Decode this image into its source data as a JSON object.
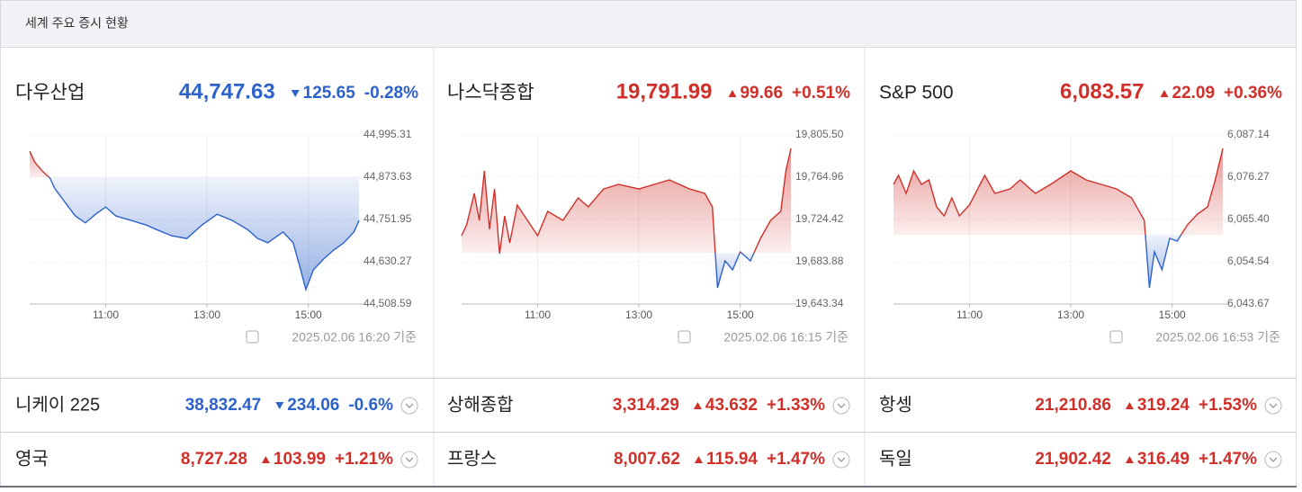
{
  "header": {
    "title": "세계 주요 증시 현황"
  },
  "colors": {
    "up": "#d0302a",
    "down": "#2d62cc"
  },
  "indices": [
    {
      "name": "다우산업",
      "price": "44,747.63",
      "change": "125.65",
      "change_pct": "-0.28%",
      "direction": "down",
      "timestamp": "2025.02.06 16:20 기준"
    },
    {
      "name": "나스닥종합",
      "price": "19,791.99",
      "change": "99.66",
      "change_pct": "+0.51%",
      "direction": "up",
      "timestamp": "2025.02.06 16:15 기준"
    },
    {
      "name": "S&P 500",
      "price": "6,083.57",
      "change": "22.09",
      "change_pct": "+0.36%",
      "direction": "up",
      "timestamp": "2025.02.06 16:53 기준"
    }
  ],
  "chart_data": [
    {
      "type": "line",
      "baseline": 44873.28,
      "grid": true,
      "x": [
        9.5,
        9.6,
        9.75,
        9.9,
        10.0,
        10.2,
        10.4,
        10.6,
        10.8,
        11.0,
        11.2,
        11.5,
        11.8,
        12.0,
        12.3,
        12.6,
        12.9,
        13.2,
        13.5,
        13.8,
        14.0,
        14.2,
        14.5,
        14.7,
        14.85,
        14.95,
        15.1,
        15.3,
        15.5,
        15.7,
        15.9,
        16.0
      ],
      "values": [
        44948.7,
        44917,
        44891,
        44871,
        44840,
        44801,
        44762,
        44742,
        44767,
        44788,
        44762,
        44749,
        44736,
        44723,
        44705,
        44697,
        44736,
        44767,
        44749,
        44723,
        44697,
        44685,
        44716,
        44685,
        44607,
        44550,
        44607,
        44638,
        44664,
        44685,
        44716,
        44749
      ],
      "xlim": [
        9.5,
        16
      ],
      "ylim": [
        44508.59,
        44995.31
      ],
      "xticks": [
        {
          "value": 11,
          "label": "11:00"
        },
        {
          "value": 13,
          "label": "13:00"
        },
        {
          "value": 15,
          "label": "15:00"
        }
      ],
      "yticks": [
        {
          "value": 44508.59,
          "label": "44,508.59"
        },
        {
          "value": 44630.27,
          "label": "44,630.27"
        },
        {
          "value": 44751.95,
          "label": "44,751.95"
        },
        {
          "value": 44873.63,
          "label": "44,873.63"
        },
        {
          "value": 44995.31,
          "label": "44,995.31"
        }
      ]
    },
    {
      "type": "line",
      "baseline": 19692.33,
      "grid": true,
      "x": [
        9.5,
        9.6,
        9.75,
        9.85,
        9.95,
        10.05,
        10.15,
        10.25,
        10.35,
        10.45,
        10.6,
        10.8,
        11.0,
        11.2,
        11.5,
        11.8,
        12.0,
        12.3,
        12.6,
        13.0,
        13.3,
        13.6,
        14.0,
        14.3,
        14.45,
        14.55,
        14.7,
        14.85,
        15.0,
        15.2,
        15.4,
        15.6,
        15.8,
        15.9,
        16.0
      ],
      "values": [
        19708.9,
        19719.2,
        19749.4,
        19723.6,
        19771.0,
        19714.9,
        19753.7,
        19691.6,
        19727.9,
        19702.0,
        19738.2,
        19723.6,
        19708.9,
        19732.2,
        19723.6,
        19745.1,
        19736.5,
        19753.7,
        19758.1,
        19753.7,
        19758.1,
        19762.4,
        19753.7,
        19749.4,
        19736.5,
        19658.9,
        19684.7,
        19676.1,
        19693.4,
        19684.7,
        19706.3,
        19723.6,
        19732.2,
        19771.0,
        19792.6
      ],
      "xlim": [
        9.5,
        16
      ],
      "ylim": [
        19643.34,
        19805.5
      ],
      "xticks": [
        {
          "value": 11,
          "label": "11:00"
        },
        {
          "value": 13,
          "label": "13:00"
        },
        {
          "value": 15,
          "label": "15:00"
        }
      ],
      "yticks": [
        {
          "value": 19643.34,
          "label": "19,643.34"
        },
        {
          "value": 19683.88,
          "label": "19,683.88"
        },
        {
          "value": 19724.42,
          "label": "19,724.42"
        },
        {
          "value": 19764.96,
          "label": "19,764.96"
        },
        {
          "value": 19805.5,
          "label": "19,805.50"
        }
      ]
    },
    {
      "type": "line",
      "baseline": 6061.48,
      "grid": true,
      "x": [
        9.5,
        9.6,
        9.75,
        9.9,
        10.05,
        10.2,
        10.35,
        10.5,
        10.65,
        10.8,
        11.0,
        11.3,
        11.5,
        11.8,
        12.0,
        12.3,
        12.6,
        13.0,
        13.3,
        13.6,
        13.9,
        14.2,
        14.45,
        14.55,
        14.65,
        14.8,
        14.95,
        15.1,
        15.3,
        15.5,
        15.7,
        15.85,
        16.0
      ],
      "values": [
        6074.42,
        6076.73,
        6072.11,
        6077.89,
        6074.42,
        6075.58,
        6068.64,
        6066.33,
        6070.96,
        6066.33,
        6069.17,
        6076.73,
        6072.11,
        6073.27,
        6075.58,
        6072.11,
        6074.42,
        6077.89,
        6075.58,
        6074.42,
        6073.27,
        6070.96,
        6065.17,
        6047.84,
        6057.08,
        6052.46,
        6060.55,
        6059.86,
        6064.02,
        6066.8,
        6068.64,
        6075.58,
        6083.67
      ],
      "xlim": [
        9.5,
        16
      ],
      "ylim": [
        6043.67,
        6087.14
      ],
      "xticks": [
        {
          "value": 11,
          "label": "11:00"
        },
        {
          "value": 13,
          "label": "13:00"
        },
        {
          "value": 15,
          "label": "15:00"
        }
      ],
      "yticks": [
        {
          "value": 6043.67,
          "label": "6,043.67"
        },
        {
          "value": 6054.54,
          "label": "6,054.54"
        },
        {
          "value": 6065.4,
          "label": "6,065.40"
        },
        {
          "value": 6076.27,
          "label": "6,076.27"
        },
        {
          "value": 6087.14,
          "label": "6,087.14"
        }
      ]
    }
  ],
  "other_indices": [
    {
      "name": "니케이 225",
      "price": "38,832.47",
      "change": "234.06",
      "change_pct": "-0.6%",
      "direction": "down"
    },
    {
      "name": "상해종합",
      "price": "3,314.29",
      "change": "43.632",
      "change_pct": "+1.33%",
      "direction": "up"
    },
    {
      "name": "항셍",
      "price": "21,210.86",
      "change": "319.24",
      "change_pct": "+1.53%",
      "direction": "up"
    },
    {
      "name": "영국",
      "price": "8,727.28",
      "change": "103.99",
      "change_pct": "+1.21%",
      "direction": "up"
    },
    {
      "name": "프랑스",
      "price": "8,007.62",
      "change": "115.94",
      "change_pct": "+1.47%",
      "direction": "up"
    },
    {
      "name": "독일",
      "price": "21,902.42",
      "change": "316.49",
      "change_pct": "+1.47%",
      "direction": "up"
    }
  ]
}
